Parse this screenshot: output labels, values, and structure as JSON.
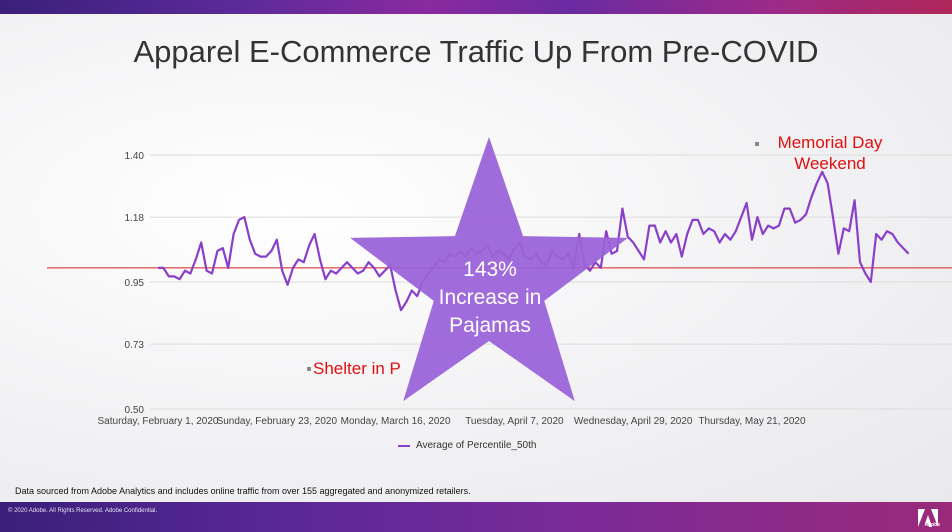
{
  "slide": {
    "title": "Apparel E-Commerce Traffic Up From Pre-COVID",
    "footnote": "Data sourced from Adobe Analytics and includes online traffic from over 155 aggregated and anonymized retailers.",
    "copyright": "© 2020 Adobe.  All Rights Reserved.  Adobe Confidential.",
    "logo_text": "Adobe"
  },
  "colors": {
    "series": "#8a3fc8",
    "baseline": "#d81e1e",
    "star": "#9b63d8",
    "annotation": "#e01010"
  },
  "annotations": {
    "star_line1": "143%",
    "star_line2": "Increase in",
    "star_line3": "Pajamas",
    "memorial_line1": "Memorial Day",
    "memorial_line2": "Weekend",
    "shelter": "Shelter in P"
  },
  "chart_data": {
    "type": "line",
    "ylim": [
      0.5,
      1.4
    ],
    "yticks": [
      "1.40",
      "1.18",
      "0.95",
      "0.73",
      "0.50"
    ],
    "ytick_values": [
      1.4,
      1.18,
      0.95,
      0.73,
      0.5
    ],
    "xticks": [
      "Saturday, February 1, 2020",
      "Sunday, February 23, 2020",
      "Monday, March 16, 2020",
      "Tuesday, April 7, 2020",
      "Wednesday, April 29, 2020",
      "Thursday, May 21, 2020"
    ],
    "xtick_index": [
      0,
      22,
      44,
      66,
      88,
      110
    ],
    "baseline_value": 1.0,
    "legend": "Average of Percentile_50th",
    "series": [
      {
        "name": "Average of Percentile_50th",
        "values": [
          1.0,
          1.0,
          0.97,
          0.97,
          0.96,
          0.99,
          0.98,
          1.03,
          1.09,
          0.99,
          0.98,
          1.06,
          1.07,
          1.0,
          1.12,
          1.17,
          1.18,
          1.1,
          1.05,
          1.04,
          1.04,
          1.06,
          1.1,
          0.99,
          0.94,
          1.0,
          1.03,
          1.02,
          1.08,
          1.12,
          1.03,
          0.96,
          0.99,
          0.98,
          1.0,
          1.02,
          1.0,
          0.98,
          0.99,
          1.02,
          1.0,
          0.97,
          0.99,
          1.01,
          0.92,
          0.85,
          0.88,
          0.92,
          0.9,
          0.95,
          0.98,
          1.0,
          1.03,
          1.02,
          1.05,
          1.04,
          1.06,
          1.04,
          1.07,
          1.05,
          1.06,
          1.08,
          1.04,
          1.06,
          1.05,
          1.03,
          1.07,
          1.09,
          1.04,
          1.03,
          1.05,
          1.02,
          1.01,
          1.06,
          1.04,
          1.03,
          1.05,
          1.0,
          1.12,
          1.01,
          0.99,
          1.02,
          1.0,
          1.13,
          1.05,
          1.06,
          1.21,
          1.11,
          1.09,
          1.06,
          1.03,
          1.15,
          1.15,
          1.09,
          1.13,
          1.09,
          1.12,
          1.04,
          1.12,
          1.17,
          1.17,
          1.12,
          1.14,
          1.13,
          1.09,
          1.12,
          1.1,
          1.13,
          1.18,
          1.23,
          1.1,
          1.18,
          1.12,
          1.15,
          1.14,
          1.15,
          1.21,
          1.21,
          1.16,
          1.17,
          1.19,
          1.25,
          1.3,
          1.34,
          1.3,
          1.18,
          1.05,
          1.14,
          1.13,
          1.24,
          1.02,
          0.98,
          0.95,
          1.12,
          1.1,
          1.13,
          1.12,
          1.09,
          1.07,
          1.05
        ]
      }
    ]
  }
}
